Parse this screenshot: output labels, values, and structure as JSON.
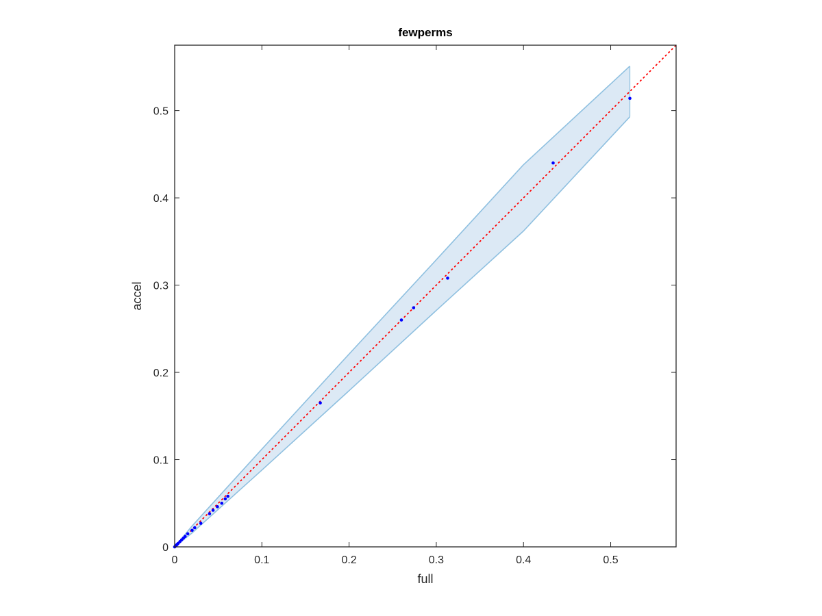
{
  "chart_data": {
    "type": "scatter",
    "title": "fewperms",
    "xlabel": "full",
    "ylabel": "accel",
    "xlim": [
      0,
      0.575
    ],
    "ylim": [
      0,
      0.575
    ],
    "xticks": [
      0,
      0.1,
      0.2,
      0.3,
      0.4,
      0.5
    ],
    "yticks": [
      0,
      0.1,
      0.2,
      0.3,
      0.4,
      0.5
    ],
    "xtick_labels": [
      "0",
      "0.1",
      "0.2",
      "0.3",
      "0.4",
      "0.5"
    ],
    "ytick_labels": [
      "0",
      "0.1",
      "0.2",
      "0.3",
      "0.4",
      "0.5"
    ],
    "grid": false,
    "points": {
      "color": "#0000ff",
      "x": [
        0.0,
        0.001,
        0.002,
        0.003,
        0.004,
        0.006,
        0.008,
        0.01,
        0.012,
        0.015,
        0.02,
        0.023,
        0.03,
        0.04,
        0.044,
        0.049,
        0.054,
        0.058,
        0.061,
        0.167,
        0.26,
        0.274,
        0.313,
        0.434,
        0.522
      ],
      "y": [
        0.0,
        0.001,
        0.002,
        0.003,
        0.004,
        0.006,
        0.008,
        0.01,
        0.012,
        0.015,
        0.019,
        0.022,
        0.027,
        0.038,
        0.042,
        0.046,
        0.05,
        0.055,
        0.058,
        0.165,
        0.26,
        0.274,
        0.308,
        0.44,
        0.514
      ]
    },
    "identity_line": {
      "from": [
        0,
        0
      ],
      "to": [
        0.575,
        0.575
      ],
      "color": "#ff0000",
      "style": "dotted"
    },
    "band": {
      "fill": "#dce9f5",
      "edge": "#8fc0e0",
      "x": [
        0,
        0.01,
        0.02,
        0.05,
        0.1,
        0.2,
        0.3,
        0.4,
        0.522
      ],
      "upper": [
        0.0,
        0.012,
        0.024,
        0.057,
        0.112,
        0.221,
        0.329,
        0.438,
        0.551
      ],
      "lower": [
        0.0,
        0.008,
        0.016,
        0.043,
        0.088,
        0.179,
        0.271,
        0.362,
        0.493
      ]
    }
  }
}
